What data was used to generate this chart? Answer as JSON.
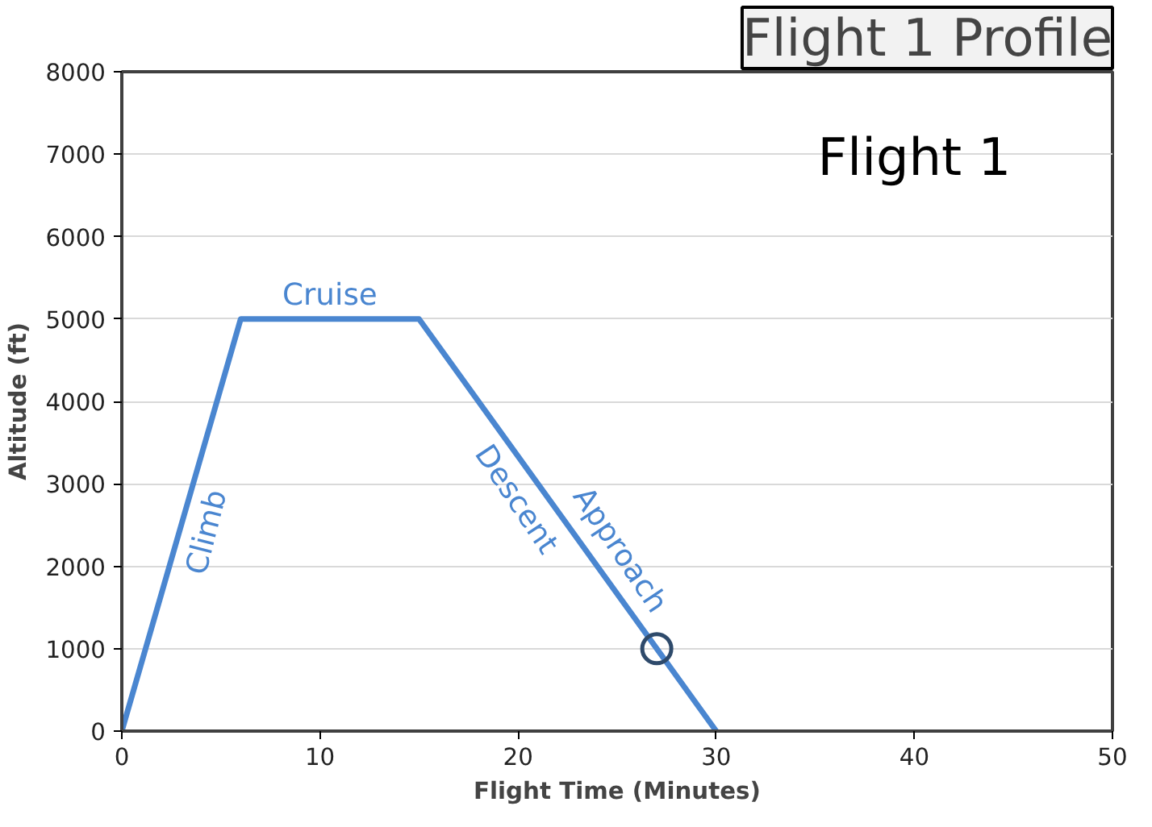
{
  "chart_data": {
    "type": "line",
    "title": "Flight 1 Profile",
    "xlabel": "Flight Time (Minutes)",
    "ylabel": "Altitude (ft)",
    "xlim": [
      0,
      50
    ],
    "xticks": [
      0,
      10,
      20,
      30,
      40,
      50
    ],
    "ylim": [
      0,
      8000
    ],
    "yticks": [
      0,
      1000,
      2000,
      3000,
      4000,
      5000,
      6000,
      7000,
      8000
    ],
    "grid": "y",
    "series": [
      {
        "color": "#4a86d0",
        "x": [
          0,
          6,
          15,
          30
        ],
        "values": [
          0,
          5000,
          5000,
          0
        ]
      },
      {
        "type": "scatter",
        "color": "#2e4a6b",
        "marker": "circle",
        "x": [
          27
        ],
        "values": [
          1000
        ]
      }
    ],
    "annotations": [
      "Flight 1",
      {
        "text": "Cruise",
        "x": 10.5,
        "y": 5000
      },
      {
        "text": "Climb",
        "x": 3,
        "y": 2500
      },
      {
        "text": "Descent",
        "x": 21,
        "y": 3000
      },
      {
        "text": "Approach",
        "x": 24,
        "y": 2000
      }
    ]
  }
}
